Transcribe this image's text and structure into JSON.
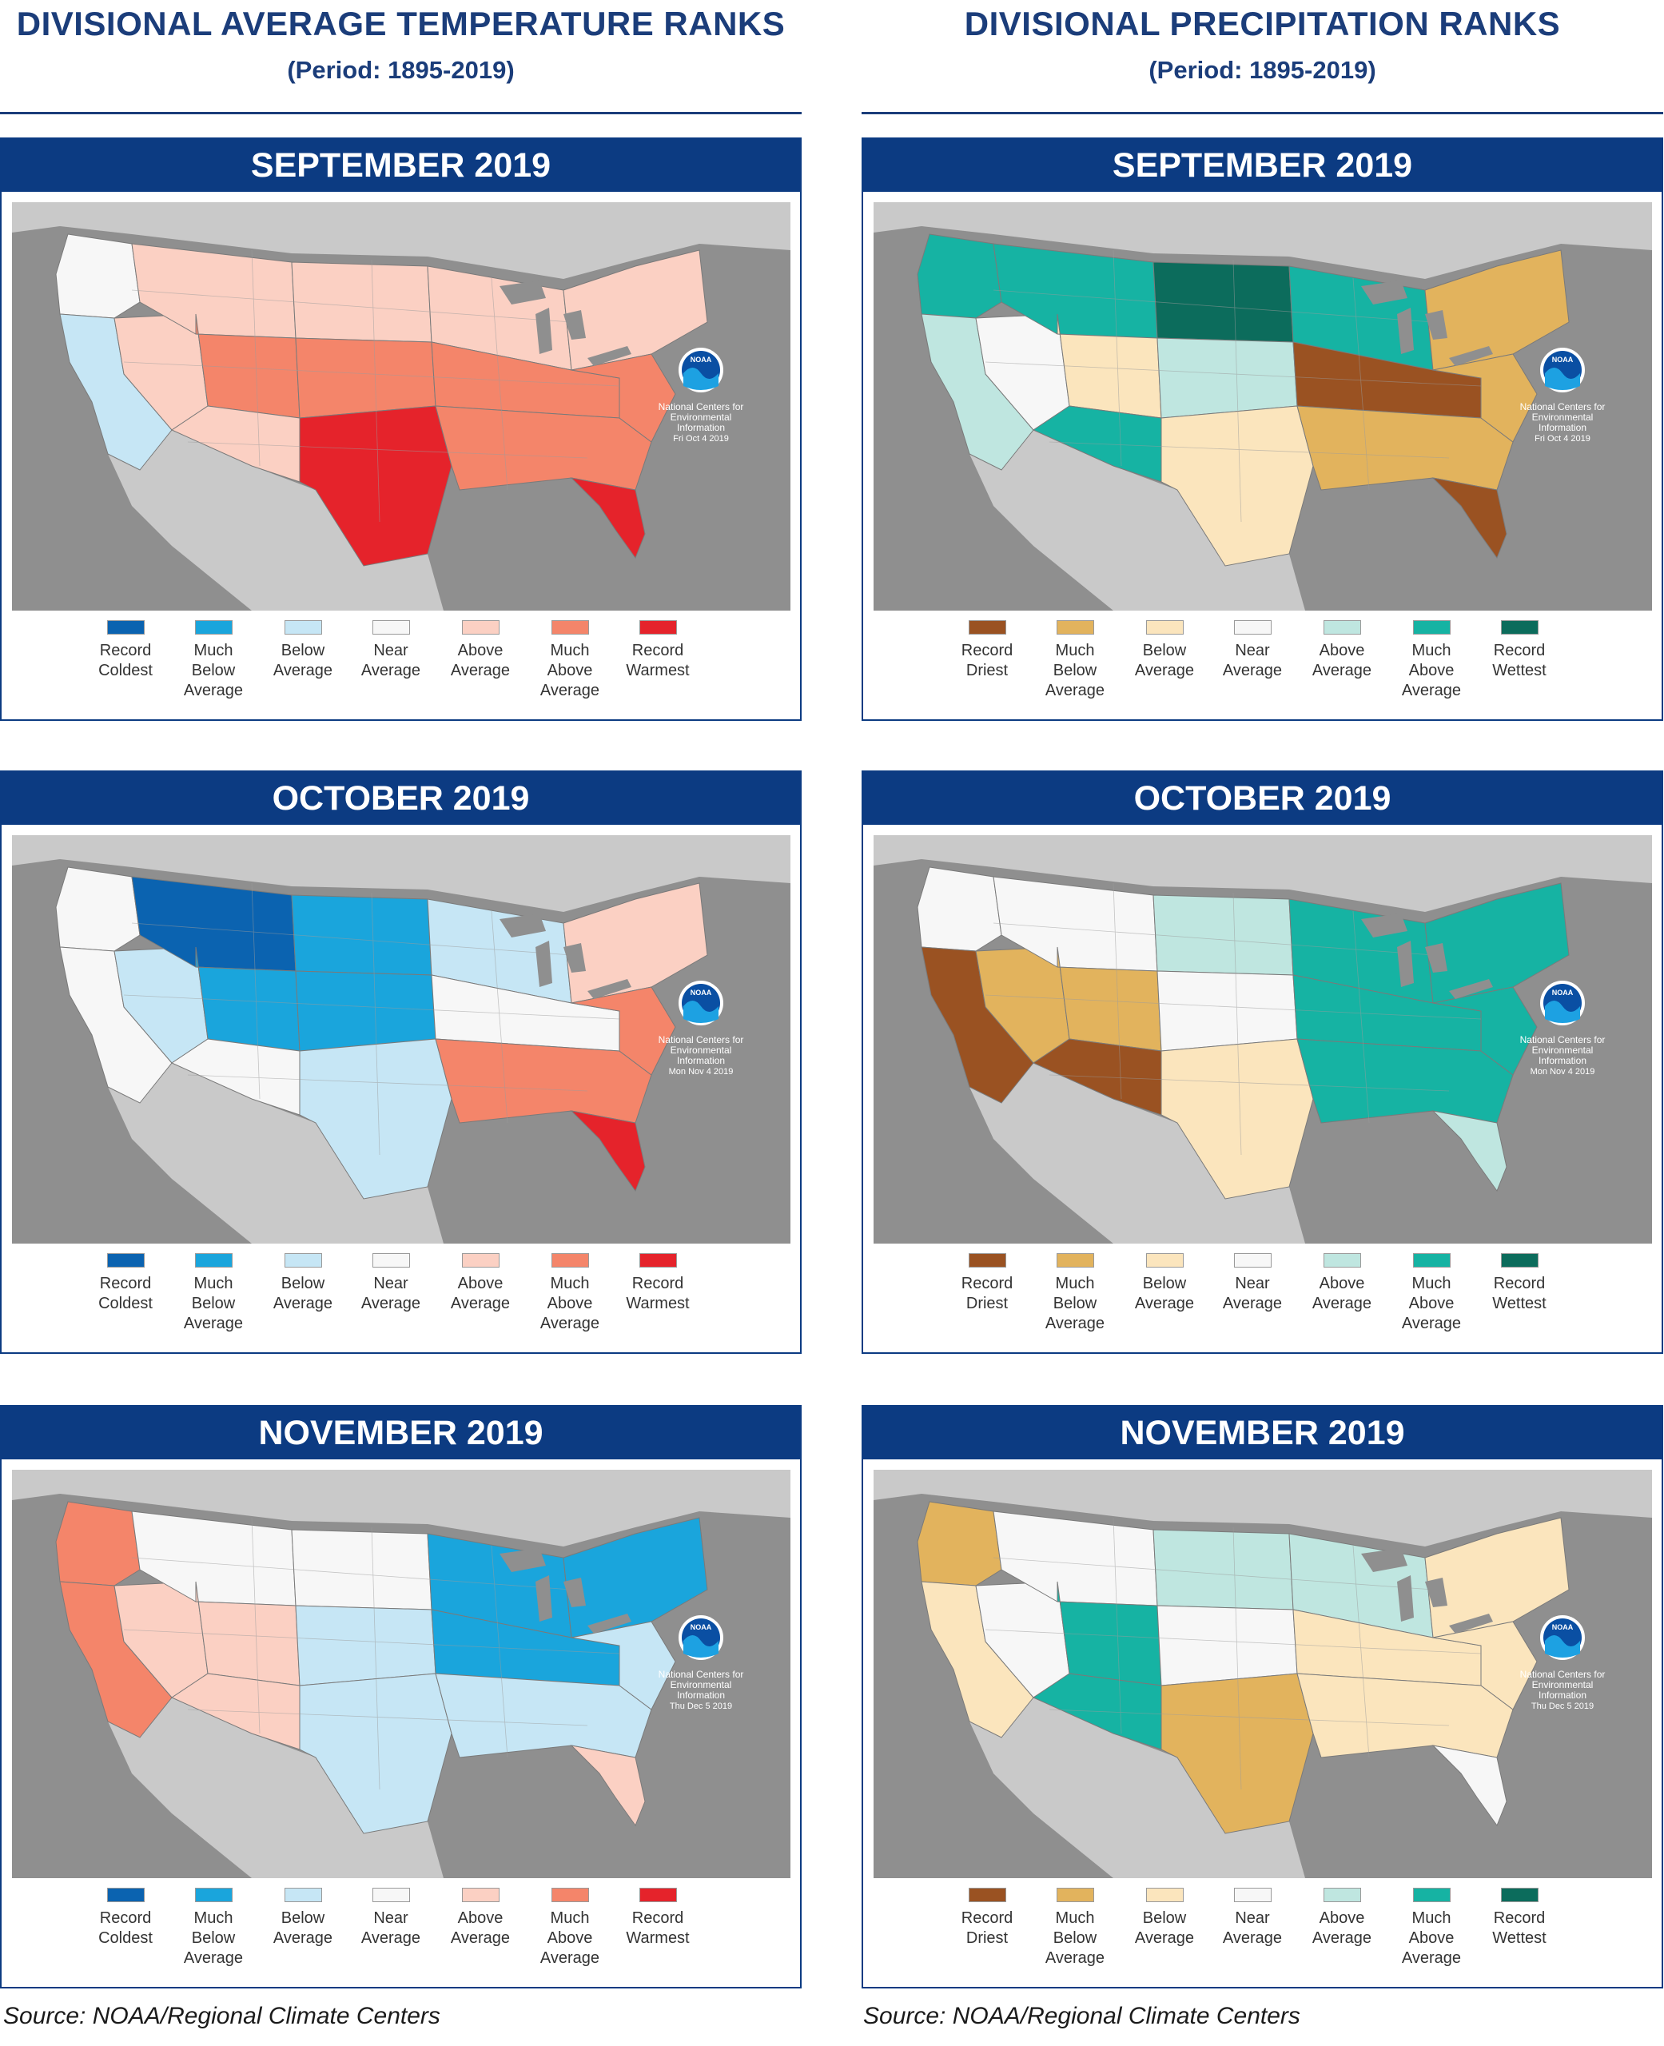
{
  "source": "Source: NOAA/Regional Climate Centers",
  "ncei_label": [
    "National Centers for",
    "Environmental",
    "Information"
  ],
  "ncei_logo_text": "NOAA",
  "columns": [
    {
      "title": "DIVISIONAL AVERAGE TEMPERATURE RANKS",
      "subtitle": "(Period: 1895-2019)",
      "legend": [
        {
          "label": [
            "Record",
            "Coldest"
          ],
          "color": "#0b63b0"
        },
        {
          "label": [
            "Much",
            "Below",
            "Average"
          ],
          "color": "#1aa5dc"
        },
        {
          "label": [
            "Below",
            "Average"
          ],
          "color": "#c6e6f5"
        },
        {
          "label": [
            "Near",
            "Average"
          ],
          "color": "#f7f7f7"
        },
        {
          "label": [
            "Above",
            "Average"
          ],
          "color": "#fbd0c3"
        },
        {
          "label": [
            "Much",
            "Above",
            "Average"
          ],
          "color": "#f4856a"
        },
        {
          "label": [
            "Record",
            "Warmest"
          ],
          "color": "#e5232b"
        }
      ],
      "panels": [
        {
          "month": "SEPTEMBER 2019",
          "date": "Fri Oct  4 2019"
        },
        {
          "month": "OCTOBER 2019",
          "date": "Mon Nov  4 2019"
        },
        {
          "month": "NOVEMBER 2019",
          "date": "Thu Dec  5 2019"
        }
      ]
    },
    {
      "title": "DIVISIONAL PRECIPITATION RANKS",
      "subtitle": "(Period: 1895-2019)",
      "legend": [
        {
          "label": [
            "Record",
            "Driest"
          ],
          "color": "#9a5222"
        },
        {
          "label": [
            "Much",
            "Below",
            "Average"
          ],
          "color": "#e2b35d"
        },
        {
          "label": [
            "Below",
            "Average"
          ],
          "color": "#fbe5bd"
        },
        {
          "label": [
            "Near",
            "Average"
          ],
          "color": "#f7f7f7"
        },
        {
          "label": [
            "Above",
            "Average"
          ],
          "color": "#bfe6e0"
        },
        {
          "label": [
            "Much",
            "Above",
            "Average"
          ],
          "color": "#16b3a3"
        },
        {
          "label": [
            "Record",
            "Wettest"
          ],
          "color": "#0c6c5c"
        }
      ],
      "panels": [
        {
          "month": "SEPTEMBER 2019",
          "date": "Fri Oct  4 2019"
        },
        {
          "month": "OCTOBER 2019",
          "date": "Mon Nov  4 2019"
        },
        {
          "month": "NOVEMBER 2019",
          "date": "Thu Dec  5 2019"
        }
      ]
    }
  ],
  "region_ranks": {
    "regions": [
      "pacific_nw",
      "california",
      "great_basin",
      "n_rockies",
      "s_rockies",
      "southwest",
      "n_plains",
      "c_plains",
      "s_plains",
      "upper_midwest",
      "ohio_valley",
      "southeast",
      "florida",
      "northeast",
      "mid_atlantic"
    ],
    "temperature": [
      [
        3,
        2,
        4,
        4,
        5,
        4,
        4,
        5,
        6,
        4,
        5,
        5,
        6,
        4,
        5
      ],
      [
        3,
        3,
        2,
        0,
        1,
        3,
        1,
        1,
        2,
        2,
        3,
        5,
        6,
        4,
        5
      ],
      [
        5,
        5,
        4,
        3,
        4,
        4,
        3,
        2,
        2,
        1,
        1,
        2,
        4,
        1,
        2
      ]
    ],
    "precipitation": [
      [
        5,
        4,
        3,
        5,
        2,
        5,
        6,
        4,
        2,
        5,
        0,
        1,
        0,
        1,
        1
      ],
      [
        3,
        0,
        1,
        3,
        1,
        0,
        4,
        3,
        2,
        5,
        5,
        5,
        4,
        5,
        5
      ],
      [
        1,
        2,
        3,
        3,
        5,
        5,
        4,
        3,
        1,
        4,
        2,
        2,
        3,
        2,
        2
      ]
    ]
  }
}
